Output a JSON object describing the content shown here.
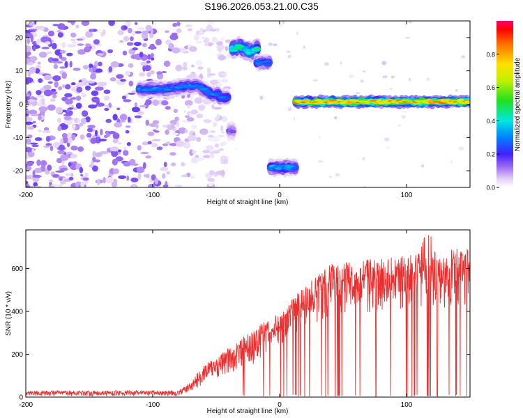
{
  "title": "S196.2026.053.21.00.C35",
  "chart_data": [
    {
      "type": "heatmap",
      "title": "S196.2026.053.21.00.C35",
      "xlabel": "Height of straight line (km)",
      "ylabel": "Frequency (Hz)",
      "xlim": [
        -200,
        150
      ],
      "ylim": [
        -25,
        25
      ],
      "xticks": [
        -200,
        -100,
        0,
        100
      ],
      "yticks": [
        -20,
        -10,
        0,
        10,
        20
      ],
      "colorbar": {
        "label": "Normalized spectral amplitude",
        "range": [
          0,
          1
        ],
        "ticks": [
          0,
          0.2,
          0.4,
          0.6,
          0.8
        ]
      },
      "background_noise": {
        "x_range": [
          -200,
          -80
        ],
        "y_range": [
          -25,
          25
        ],
        "amplitude": 0.15
      },
      "features": [
        {
          "name": "main-track",
          "x_range": [
            -110,
            -40
          ],
          "freq": 4,
          "amplitude": 0.3
        },
        {
          "name": "upper-blob-a",
          "x_range": [
            -37,
            -17
          ],
          "freq": 16.5,
          "amplitude": 0.45
        },
        {
          "name": "upper-blob-b",
          "x_range": [
            -18,
            -7
          ],
          "freq": 12.5,
          "amplitude": 0.3
        },
        {
          "name": "spike",
          "x_range": [
            -40,
            -36
          ],
          "freq": -8,
          "amplitude": 0.15
        },
        {
          "name": "lower-blob",
          "x_range": [
            -7,
            13
          ],
          "freq": -19,
          "amplitude": 0.35
        },
        {
          "name": "right-track",
          "x_range": [
            13,
            150
          ],
          "freq": 0.7,
          "amplitude": 0.8
        }
      ]
    },
    {
      "type": "line",
      "xlabel": "Height of straight line (km)",
      "ylabel": "SNR (10 * v/v)",
      "xlim": [
        -200,
        150
      ],
      "ylim": [
        0,
        780
      ],
      "xticks": [
        -200,
        -100,
        0,
        100
      ],
      "yticks": [
        0,
        200,
        400,
        600
      ],
      "series": [
        {
          "name": "SNR",
          "color": "#e83030",
          "envelope_x": [
            -200,
            -80,
            -70,
            -60,
            -40,
            -20,
            0,
            20,
            40,
            80,
            120,
            150
          ],
          "envelope_upper": [
            30,
            30,
            70,
            150,
            230,
            320,
            400,
            520,
            620,
            650,
            680,
            700
          ],
          "envelope_lower": [
            5,
            5,
            20,
            60,
            100,
            150,
            230,
            330,
            370,
            400,
            420,
            400
          ]
        }
      ]
    }
  ]
}
